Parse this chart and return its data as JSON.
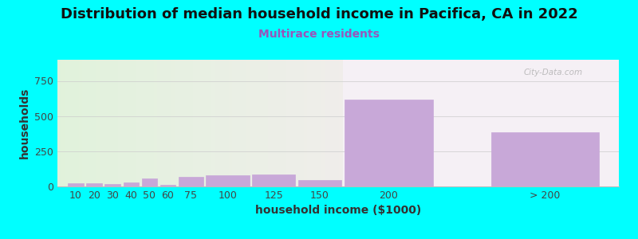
{
  "title": "Distribution of median household income in Pacifica, CA in 2022",
  "subtitle": "Multirace residents",
  "xlabel": "household income ($1000)",
  "ylabel": "households",
  "background_color": "#00FFFF",
  "plot_bg_color_left": "#e0f0d8",
  "plot_bg_color_right": "#f0eaf4",
  "bar_color": "#c8a8d8",
  "bar_edge_color": "#b090c0",
  "categories": [
    "10",
    "20",
    "30",
    "40",
    "50",
    "60",
    "75",
    "100",
    "125",
    "150",
    "200",
    "> 200"
  ],
  "left_edges": [
    0,
    10,
    20,
    30,
    40,
    50,
    60,
    75,
    100,
    125,
    150,
    230
  ],
  "bar_widths": [
    10,
    10,
    10,
    10,
    10,
    10,
    15,
    25,
    25,
    25,
    50,
    60
  ],
  "values": [
    25,
    22,
    18,
    30,
    55,
    10,
    70,
    80,
    85,
    45,
    615,
    385
  ],
  "split_x": 150,
  "xlim": [
    -5,
    300
  ],
  "ylim": [
    0,
    900
  ],
  "yticks": [
    0,
    250,
    500,
    750
  ],
  "xtick_positions": [
    5,
    15,
    25,
    35,
    45,
    55,
    67.5,
    87.5,
    112.5,
    137.5,
    175,
    260
  ],
  "xtick_labels": [
    "10",
    "20",
    "30",
    "40",
    "50",
    "60",
    "75",
    "100",
    "125",
    "150",
    "200",
    "> 200"
  ],
  "title_fontsize": 13,
  "subtitle_fontsize": 10,
  "label_fontsize": 10,
  "tick_fontsize": 9
}
